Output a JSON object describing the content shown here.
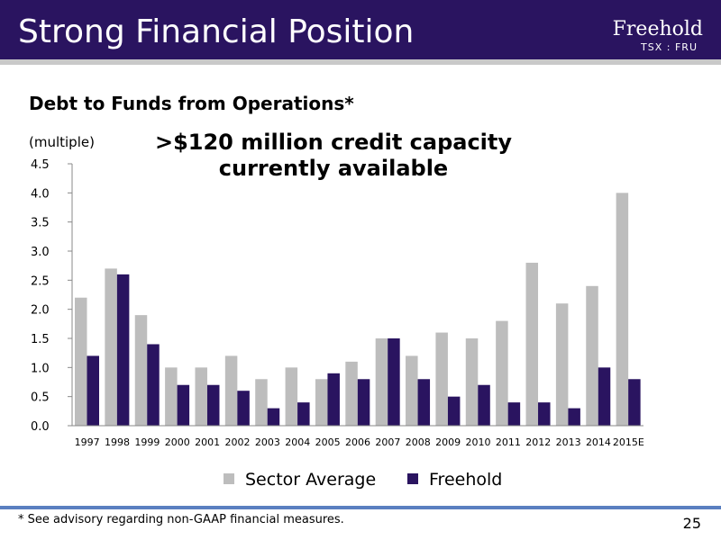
{
  "header": {
    "title": "Strong Financial Position",
    "brand": "Freehold",
    "ticker": "TSX : FRU"
  },
  "colors": {
    "header_bg": "#2a1460",
    "sector_average": "#bdbdbd",
    "freehold": "#2a1460",
    "footer_rule": "#5a7fc0"
  },
  "callout": {
    "line1": ">$120 million credit capacity",
    "line2": "currently available"
  },
  "chart_data": {
    "type": "bar",
    "title": "Debt to Funds from Operations*",
    "ylabel": "(multiple)",
    "xlabel": "",
    "categories": [
      "1997",
      "1998",
      "1999",
      "2000",
      "2001",
      "2002",
      "2003",
      "2004",
      "2005",
      "2006",
      "2007",
      "2008",
      "2009",
      "2010",
      "2011",
      "2012",
      "2013",
      "2014",
      "2015E"
    ],
    "series": [
      {
        "name": "Sector Average",
        "values": [
          2.2,
          2.7,
          1.9,
          1.0,
          1.0,
          1.2,
          0.8,
          1.0,
          0.8,
          1.1,
          1.5,
          1.2,
          1.6,
          1.5,
          1.8,
          2.8,
          2.1,
          2.4,
          4.0
        ]
      },
      {
        "name": "Freehold",
        "values": [
          1.2,
          2.6,
          1.4,
          0.7,
          0.7,
          0.6,
          0.3,
          0.4,
          0.9,
          0.8,
          1.5,
          0.8,
          0.5,
          0.7,
          0.4,
          0.4,
          0.3,
          1.0,
          0.8
        ]
      }
    ],
    "ylim": [
      0,
      4.5
    ],
    "yticks": [
      "0.0",
      "0.5",
      "1.0",
      "1.5",
      "2.0",
      "2.5",
      "3.0",
      "3.5",
      "4.0",
      "4.5"
    ],
    "grid": false,
    "legend": "bottom-center"
  },
  "footer": {
    "footnote": "* See advisory regarding non-GAAP financial measures.",
    "page_number": "25"
  }
}
